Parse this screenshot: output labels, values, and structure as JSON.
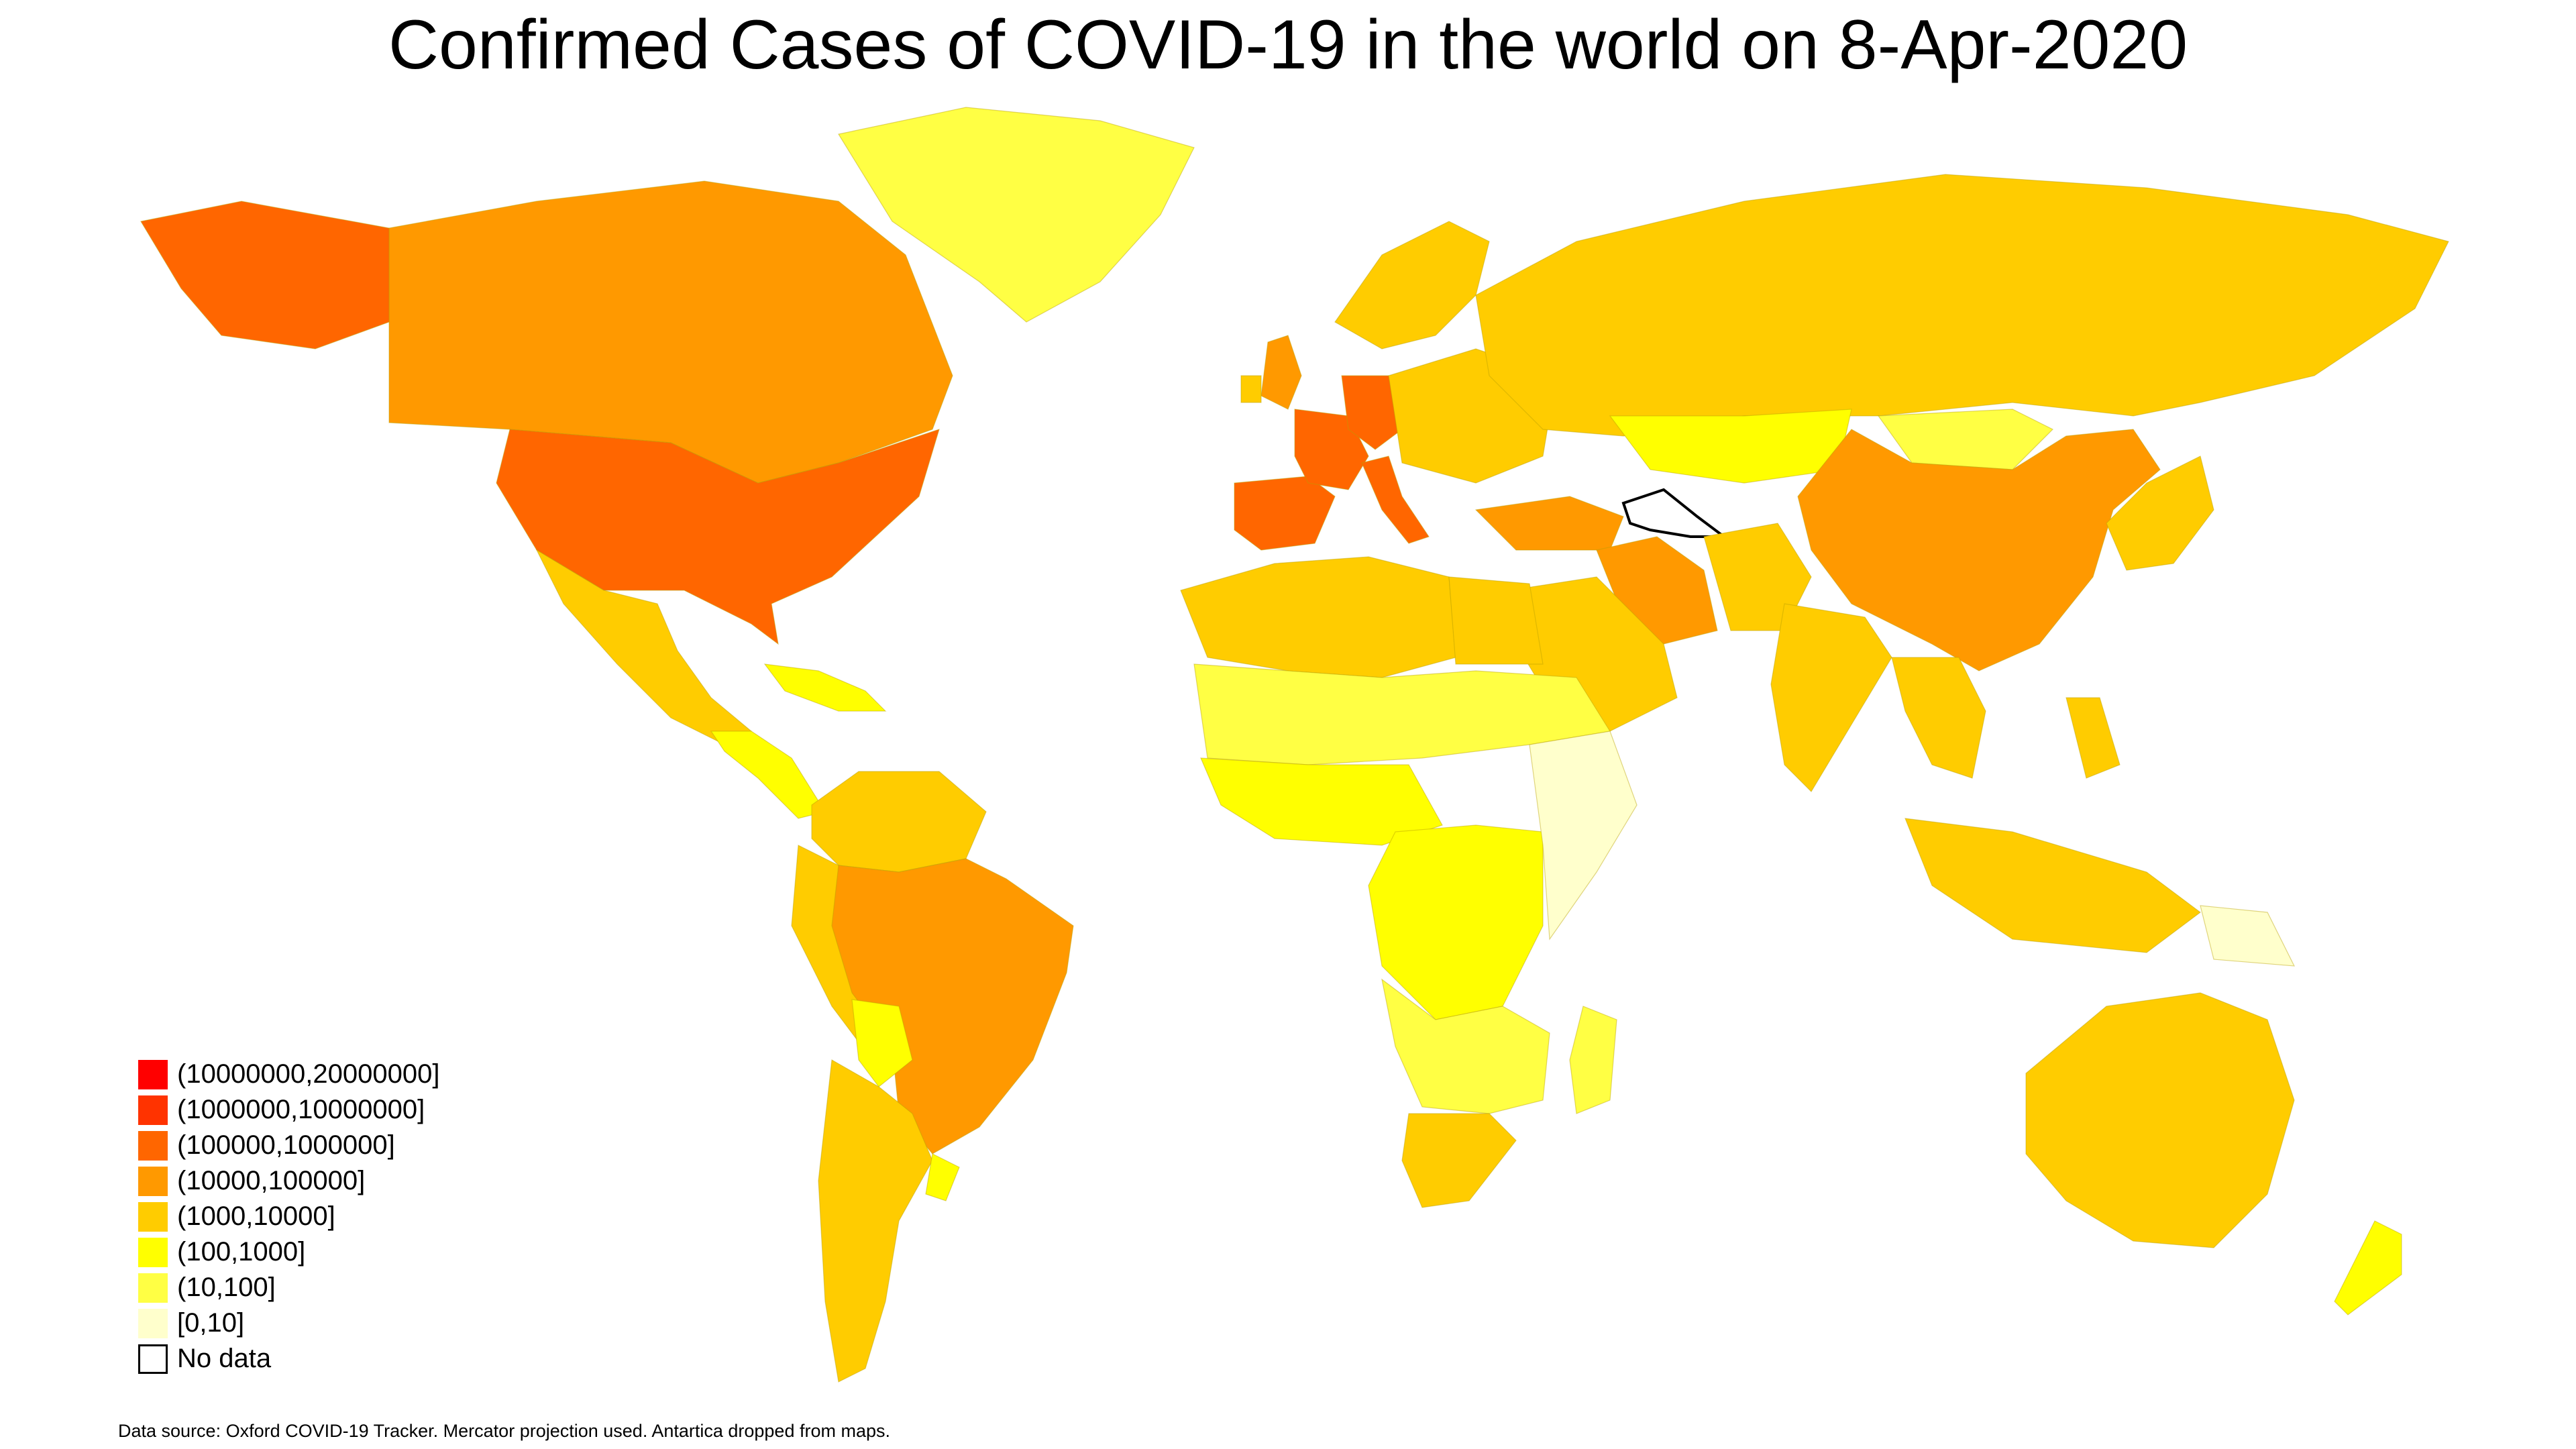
{
  "title": "Confirmed Cases of COVID-19 in the world on 8-Apr-2020",
  "legend": [
    {
      "label": "(10000000,20000000]",
      "color": "#ff0000"
    },
    {
      "label": "(1000000,10000000]",
      "color": "#ff3300"
    },
    {
      "label": "(100000,1000000]",
      "color": "#ff6600"
    },
    {
      "label": "(10000,100000]",
      "color": "#ff9900"
    },
    {
      "label": "(1000,10000]",
      "color": "#ffcc00"
    },
    {
      "label": "(100,1000]",
      "color": "#ffff00"
    },
    {
      "label": "(10,100]",
      "color": "#ffff44"
    },
    {
      "label": "[0,10]",
      "color": "#ffffcc"
    },
    {
      "label": "No data",
      "color": "#ffffff"
    }
  ],
  "source": "Data source: Oxford COVID-19 Tracker. Mercator projection used. Antartica dropped from maps.",
  "map": {
    "projection": "Mercator",
    "regions": [
      {
        "name": "united-states",
        "bin": "(100000,1000000]"
      },
      {
        "name": "alaska",
        "bin": "(100000,1000000]"
      },
      {
        "name": "canada",
        "bin": "(10000,100000]"
      },
      {
        "name": "greenland",
        "bin": "(10,100]"
      },
      {
        "name": "mexico",
        "bin": "(1000,10000]"
      },
      {
        "name": "central-america",
        "bin": "(100,1000]"
      },
      {
        "name": "caribbean",
        "bin": "(100,1000]"
      },
      {
        "name": "brazil",
        "bin": "(10000,100000]"
      },
      {
        "name": "peru",
        "bin": "(1000,10000]"
      },
      {
        "name": "colombia-venezuela",
        "bin": "(1000,10000]"
      },
      {
        "name": "bolivia",
        "bin": "(100,1000]"
      },
      {
        "name": "argentina-chile",
        "bin": "(1000,10000]"
      },
      {
        "name": "uruguay",
        "bin": "(100,1000]"
      },
      {
        "name": "spain-portugal",
        "bin": "(100000,1000000]"
      },
      {
        "name": "france",
        "bin": "(100000,1000000]"
      },
      {
        "name": "united-kingdom",
        "bin": "(10000,100000]"
      },
      {
        "name": "ireland",
        "bin": "(1000,10000]"
      },
      {
        "name": "germany",
        "bin": "(100000,1000000]"
      },
      {
        "name": "italy",
        "bin": "(100000,1000000]"
      },
      {
        "name": "scandinavia",
        "bin": "(1000,10000]"
      },
      {
        "name": "eastern-europe",
        "bin": "(1000,10000]"
      },
      {
        "name": "turkey",
        "bin": "(10000,100000]"
      },
      {
        "name": "russia",
        "bin": "(1000,10000]"
      },
      {
        "name": "kazakhstan",
        "bin": "(100,1000]"
      },
      {
        "name": "mongolia",
        "bin": "(10,100]"
      },
      {
        "name": "china",
        "bin": "(10000,100000]"
      },
      {
        "name": "iran",
        "bin": "(10000,100000]"
      },
      {
        "name": "turkmenistan",
        "bin": "No data"
      },
      {
        "name": "arabia",
        "bin": "(1000,10000]"
      },
      {
        "name": "india",
        "bin": "(1000,10000]"
      },
      {
        "name": "pakistan-afghanistan",
        "bin": "(1000,10000]"
      },
      {
        "name": "southeast-asia",
        "bin": "(1000,10000]"
      },
      {
        "name": "japan-korea",
        "bin": "(1000,10000]"
      },
      {
        "name": "indonesia",
        "bin": "(1000,10000]"
      },
      {
        "name": "philippines",
        "bin": "(1000,10000]"
      },
      {
        "name": "papua-new-guinea",
        "bin": "[0,10]"
      },
      {
        "name": "australia",
        "bin": "(1000,10000]"
      },
      {
        "name": "new-zealand",
        "bin": "(100,1000]"
      },
      {
        "name": "north-africa",
        "bin": "(1000,10000]"
      },
      {
        "name": "egypt",
        "bin": "(1000,10000]"
      },
      {
        "name": "west-africa",
        "bin": "(100,1000]"
      },
      {
        "name": "sahel",
        "bin": "(10,100]"
      },
      {
        "name": "central-africa",
        "bin": "(100,1000]"
      },
      {
        "name": "east-africa",
        "bin": "[0,10]"
      },
      {
        "name": "southern-africa",
        "bin": "(10,100]"
      },
      {
        "name": "south-africa",
        "bin": "(1000,10000]"
      },
      {
        "name": "madagascar",
        "bin": "(10,100]"
      }
    ]
  }
}
